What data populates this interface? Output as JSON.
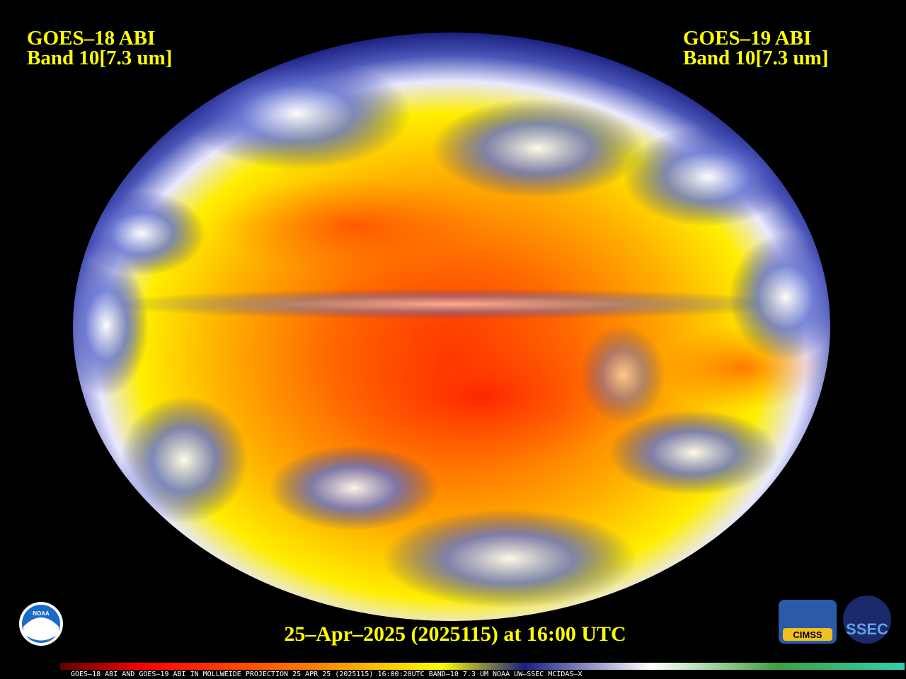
{
  "header": {
    "left": [
      "GOES–18 ABI",
      "Band 10[7.3 um]"
    ],
    "right": [
      "GOES–19 ABI",
      "Band 10[7.3 um]"
    ]
  },
  "timestamp": "25–Apr–2025 (2025115) at 16:00 UTC",
  "colorbar_caption": "GOES–18 ABI AND GOES–19 ABI IN MOLLWEIDE PROJECTION 25 APR 25 (2025115) 16:00:20UTC BAND–10 7.3 UM NOAA UW–SSEC MCIDAS–X",
  "logos": [
    "NOAA",
    "CIMSS",
    "SSEC"
  ]
}
